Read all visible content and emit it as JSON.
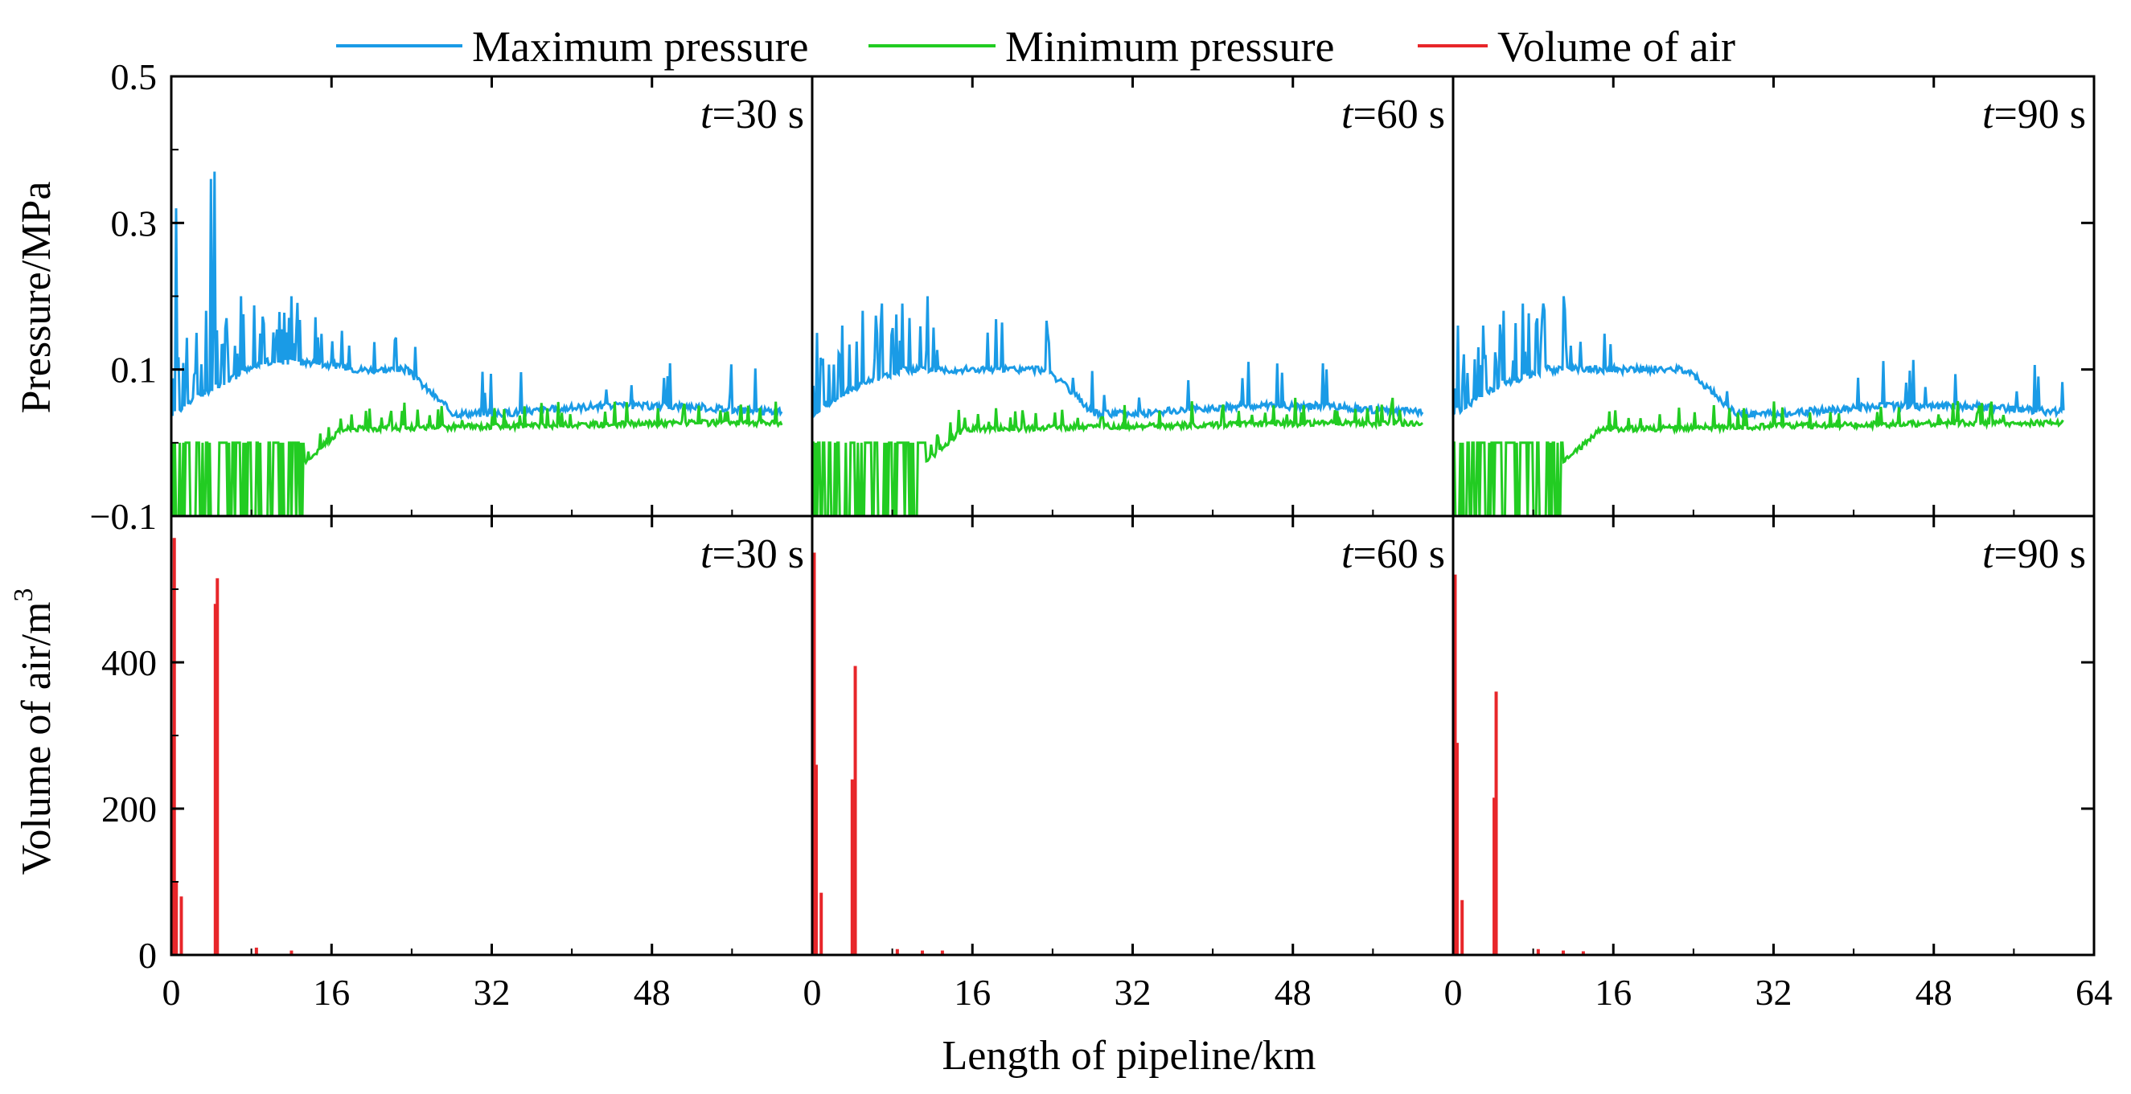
{
  "chart_data": {
    "type": "line",
    "layout": "2 rows x 3 columns, shared axes",
    "legend": {
      "placement": "top-center",
      "entries": [
        {
          "name": "Maximum pressure",
          "color": "#1a9be6"
        },
        {
          "name": "Minimum pressure",
          "color": "#22cc22"
        },
        {
          "name": "Volume of air",
          "color": "#e8262a"
        }
      ]
    },
    "xlabel": "Length of pipeline/km",
    "xlim": [
      0,
      64
    ],
    "xticks": [
      "0",
      "16",
      "32",
      "48",
      "64"
    ],
    "pressure_axis": {
      "ylabel": "Pressure/MPa",
      "ylim": [
        -0.1,
        0.5
      ],
      "yticks": [
        "0.5",
        "0.3",
        "0.1",
        "−0.1"
      ]
    },
    "air_axis": {
      "ylabel_main": "Volume of air/m",
      "ylabel_sup": "3",
      "ylim": [
        0,
        600
      ],
      "yticks": [
        "400",
        "200",
        "0"
      ]
    },
    "time_prefix": "t",
    "panels": [
      {
        "time": "=30 s",
        "pressure": {
          "pipeline_end_km": 61,
          "max_series": {
            "name": "Maximum pressure",
            "base_values": [
              0.04,
              0.08,
              0.11,
              0.11,
              0.1,
              0.1,
              0.04,
              0.04,
              0.045,
              0.05,
              0.05,
              0.05,
              0.045,
              0.042
            ],
            "spikes": [
              [
                0.5,
                0.32
              ],
              [
                2.5,
                0.15
              ],
              [
                3.5,
                0.18
              ],
              [
                4.0,
                0.36
              ],
              [
                4.3,
                0.37
              ],
              [
                5.5,
                0.17
              ],
              [
                7.0,
                0.2
              ],
              [
                12.0,
                0.2
              ]
            ]
          },
          "min_series": {
            "name": "Minimum pressure",
            "saturated_until_km": 13.3,
            "floor_value": -0.1,
            "recovery_value": 0.0
          }
        },
        "air": {
          "spikes": [
            {
              "x": 0.3,
              "value": 570
            },
            {
              "x": 0.15,
              "value": 300
            },
            {
              "x": 0.5,
              "value": 100
            },
            {
              "x": 1.0,
              "value": 80
            },
            {
              "x": 4.4,
              "value": 480
            },
            {
              "x": 4.6,
              "value": 515
            },
            {
              "x": 8.5,
              "value": 10
            },
            {
              "x": 12.0,
              "value": 6
            }
          ]
        }
      },
      {
        "time": "=60 s",
        "pressure": {
          "pipeline_end_km": 61,
          "max_series": {
            "name": "Maximum pressure",
            "base_values": [
              0.04,
              0.08,
              0.1,
              0.1,
              0.1,
              0.1,
              0.04,
              0.04,
              0.045,
              0.05,
              0.05,
              0.05,
              0.045,
              0.042
            ],
            "spikes": [
              [
                0.5,
                0.15
              ],
              [
                3.0,
                0.16
              ],
              [
                5.0,
                0.18
              ],
              [
                7.0,
                0.19
              ],
              [
                9.0,
                0.19
              ],
              [
                11.5,
                0.2
              ]
            ]
          },
          "min_series": {
            "name": "Minimum pressure",
            "saturated_until_km": 11.3,
            "floor_value": -0.1,
            "recovery_value": 0.0
          }
        },
        "air": {
          "spikes": [
            {
              "x": 0.2,
              "value": 550
            },
            {
              "x": 0.4,
              "value": 260
            },
            {
              "x": 0.9,
              "value": 85
            },
            {
              "x": 4.0,
              "value": 240
            },
            {
              "x": 4.3,
              "value": 395
            },
            {
              "x": 8.5,
              "value": 8
            },
            {
              "x": 11.0,
              "value": 6
            },
            {
              "x": 13.0,
              "value": 6
            }
          ]
        }
      },
      {
        "time": "=90 s",
        "pressure": {
          "pipeline_end_km": 61,
          "max_series": {
            "name": "Maximum pressure",
            "base_values": [
              0.04,
              0.08,
              0.1,
              0.1,
              0.1,
              0.1,
              0.04,
              0.04,
              0.045,
              0.05,
              0.05,
              0.05,
              0.045,
              0.042
            ],
            "spikes": [
              [
                0.5,
                0.16
              ],
              [
                3.0,
                0.16
              ],
              [
                5.0,
                0.18
              ],
              [
                7.0,
                0.19
              ],
              [
                9.0,
                0.19
              ],
              [
                11.0,
                0.2
              ]
            ]
          },
          "min_series": {
            "name": "Minimum pressure",
            "saturated_until_km": 11.0,
            "floor_value": -0.1,
            "recovery_value": 0.0
          }
        },
        "air": {
          "spikes": [
            {
              "x": 0.2,
              "value": 520
            },
            {
              "x": 0.4,
              "value": 290
            },
            {
              "x": 0.9,
              "value": 75
            },
            {
              "x": 4.1,
              "value": 215
            },
            {
              "x": 4.3,
              "value": 360
            },
            {
              "x": 8.5,
              "value": 8
            },
            {
              "x": 11.0,
              "value": 6
            },
            {
              "x": 13.0,
              "value": 5
            }
          ]
        }
      }
    ]
  }
}
